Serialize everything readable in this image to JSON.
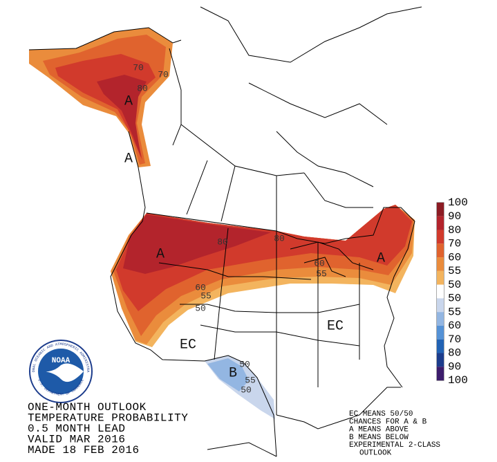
{
  "title_lines": [
    "ONE-MONTH OUTLOOK",
    "TEMPERATURE PROBABILITY",
    "0.5 MONTH LEAD",
    "VALID MAR 2016",
    "MADE 18 FEB 2016"
  ],
  "notes": [
    "EC MEANS 50/50",
    "CHANCES FOR A & B",
    "A MEANS ABOVE",
    "B MEANS BELOW",
    "EXPERIMENTAL 2-CLASS",
    "OUTLOOK"
  ],
  "legend": {
    "labels": [
      100,
      90,
      80,
      70,
      60,
      55,
      50,
      50,
      55,
      60,
      70,
      80,
      90,
      100
    ],
    "colors": [
      "#8c1c24",
      "#b3242c",
      "#d13a2c",
      "#e0632e",
      "#ea8c3c",
      "#f3b45e",
      "#ffffff",
      "#c9d6ec",
      "#93b6e2",
      "#5592d6",
      "#2162b4",
      "#1c3c8c",
      "#3c1c6c"
    ]
  },
  "map_labels": [
    "A",
    "A",
    "A",
    "A",
    "EC",
    "EC",
    "B",
    "70",
    "70",
    "80",
    "80",
    "80",
    "60",
    "55",
    "50",
    "60",
    "55",
    "50",
    "55",
    "50"
  ],
  "logo": {
    "name": "NOAA",
    "ring": "NATIONAL OCEANIC AND ATMOSPHERIC ADMINISTRATION",
    "ring_bottom": "U.S. DEPARTMENT OF COMMERCE"
  }
}
